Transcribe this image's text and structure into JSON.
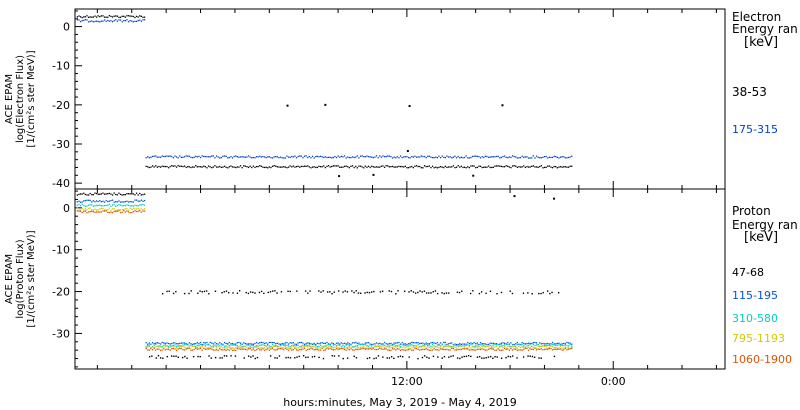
{
  "xaxis": {
    "label": "hours:minutes, May  3, 2019 - May  4, 2019",
    "ticks": [
      {
        "x": 12,
        "label": "12:00"
      },
      {
        "x": 24,
        "label": "0:00"
      }
    ],
    "minor_ticks": [
      -6,
      -4,
      -2,
      0,
      2,
      4,
      6,
      8,
      10,
      12,
      14,
      16,
      18,
      20,
      22,
      24,
      26,
      28,
      30
    ],
    "xlim": [
      -7.3,
      30.5
    ]
  },
  "chart_data": [
    {
      "type": "scatter",
      "panel": "electron",
      "ylabel_lines": [
        "ACE EPAM",
        "log(Electron Flux)",
        "[1/(cm²s ster MeV)]"
      ],
      "ylim": [
        -41.5,
        4.5
      ],
      "yticks": [
        0,
        -10,
        -20,
        -30,
        -40
      ],
      "legend_title_lines": [
        "Electron",
        "Energy ran",
        "[keV]"
      ],
      "series": [
        {
          "name": "38-53",
          "color": "#000000",
          "segments": [
            {
              "x": [
                -7.2,
                -3.2
              ],
              "y": 2.6
            },
            {
              "x": [
                -3.2,
                21.6
              ],
              "y": -35.8
            }
          ],
          "outliers": [
            {
              "x": 5,
              "y": -20.2
            },
            {
              "x": 7.2,
              "y": -20.0
            },
            {
              "x": 12.1,
              "y": -20.3
            },
            {
              "x": 17.5,
              "y": -20.1
            },
            {
              "x": 12,
              "y": -31.8
            },
            {
              "x": 8,
              "y": -38.2
            },
            {
              "x": 10,
              "y": -37.9
            },
            {
              "x": 15.8,
              "y": -38.1
            }
          ]
        },
        {
          "name": "175-315",
          "color": "#0044cc",
          "segments": [
            {
              "x": [
                -7.2,
                -3.2
              ],
              "y": 1.5
            },
            {
              "x": [
                -3.2,
                21.6
              ],
              "y": -33.3
            }
          ],
          "outliers": []
        }
      ]
    },
    {
      "type": "scatter",
      "panel": "proton",
      "ylabel_lines": [
        "ACE EPAM",
        "log(Proton Flux)",
        "[1/(cm²s ster MeV)]"
      ],
      "ylim": [
        -38.5,
        4.5
      ],
      "yticks": [
        0,
        -10,
        -20,
        -30
      ],
      "legend_title_lines": [
        "Proton",
        "Energy ran",
        "[keV]"
      ],
      "series": [
        {
          "name": "47-68",
          "color": "#000000",
          "segments": [
            {
              "x": [
                -7.2,
                -3.2
              ],
              "y": 3.3
            }
          ],
          "outliers": [
            {
              "x": 18.2,
              "y": 2.8
            },
            {
              "x": 20.5,
              "y": 2.2
            }
          ]
        },
        {
          "name": "115-195",
          "color": "#0055dd",
          "segments": [
            {
              "x": [
                -7.2,
                -3.2
              ],
              "y": 1.6
            },
            {
              "x": [
                -3.2,
                21.6
              ],
              "y": -32.4
            }
          ],
          "outliers": []
        },
        {
          "name": "310-580",
          "color": "#00cccc",
          "segments": [
            {
              "x": [
                -7.2,
                -3.2
              ],
              "y": 0.6
            },
            {
              "x": [
                -3.2,
                21.6
              ],
              "y": -32.9
            }
          ],
          "outliers": []
        },
        {
          "name": "795-1193",
          "color": "#cccc00",
          "segments": [
            {
              "x": [
                -7.2,
                -3.2
              ],
              "y": -0.3
            },
            {
              "x": [
                -3.2,
                21.6
              ],
              "y": -33.3
            }
          ],
          "outliers": []
        },
        {
          "name": "1060-1900",
          "color": "#dd5500",
          "segments": [
            {
              "x": [
                -7.2,
                -3.2
              ],
              "y": -0.9
            },
            {
              "x": [
                -3.2,
                21.6
              ],
              "y": -33.8
            }
          ],
          "outliers": []
        }
      ],
      "scattered_points": [
        {
          "x_range": [
            -2.5,
            21
          ],
          "y": -20.0,
          "color": "#000000",
          "sparse": true
        },
        {
          "x_range": [
            -3,
            21
          ],
          "y": -35.5,
          "color": "#000000",
          "sparse": true
        }
      ]
    }
  ]
}
